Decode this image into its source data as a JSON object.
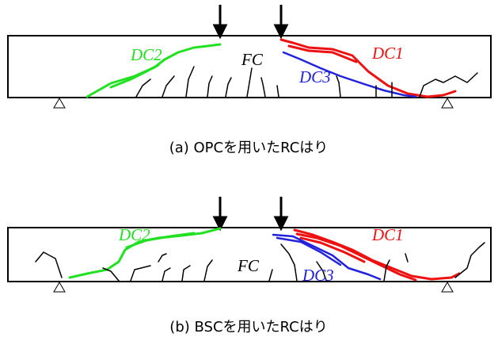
{
  "panels": [
    {
      "labels": {
        "dc2": "DC2",
        "fc": "FC",
        "dc1": "DC1",
        "dc3": "DC3"
      },
      "caption": "(a) OPCを用いたRCはり"
    },
    {
      "labels": {
        "dc2": "DC2",
        "fc": "FC",
        "dc1": "DC1",
        "dc3": "DC3"
      },
      "caption": "(b) BSCを用いたRCはり"
    }
  ]
}
